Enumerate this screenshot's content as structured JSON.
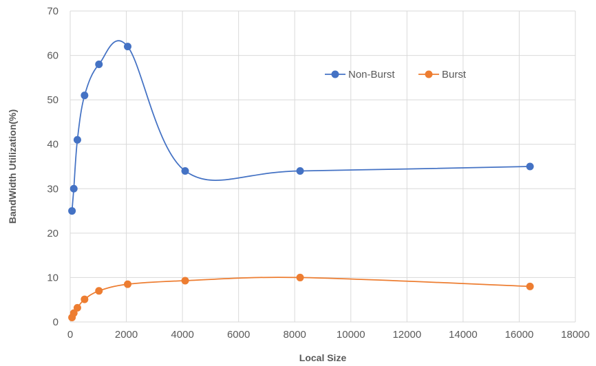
{
  "chart_data": {
    "type": "line",
    "title": "",
    "xlabel": "Local Size",
    "ylabel": "BandWidth Utilization(%)",
    "xlim": [
      0,
      18000
    ],
    "ylim": [
      0,
      70
    ],
    "x_ticks": [
      0,
      2000,
      4000,
      6000,
      8000,
      10000,
      12000,
      14000,
      16000,
      18000
    ],
    "y_ticks": [
      0,
      10,
      20,
      30,
      40,
      50,
      60,
      70
    ],
    "grid": true,
    "smooth": true,
    "legend_position": "top-right",
    "series": [
      {
        "name": "Non-Burst",
        "color": "#4472C4",
        "x": [
          64,
          128,
          256,
          512,
          1024,
          2048,
          4096,
          8192,
          16384
        ],
        "y": [
          25,
          30,
          41,
          51,
          58,
          62,
          34,
          34,
          35
        ]
      },
      {
        "name": "Burst",
        "color": "#ED7D31",
        "x": [
          64,
          128,
          256,
          512,
          1024,
          2048,
          4096,
          8192,
          16384
        ],
        "y": [
          1,
          2,
          3.2,
          5.1,
          7,
          8.5,
          9.3,
          10,
          8
        ]
      }
    ]
  }
}
